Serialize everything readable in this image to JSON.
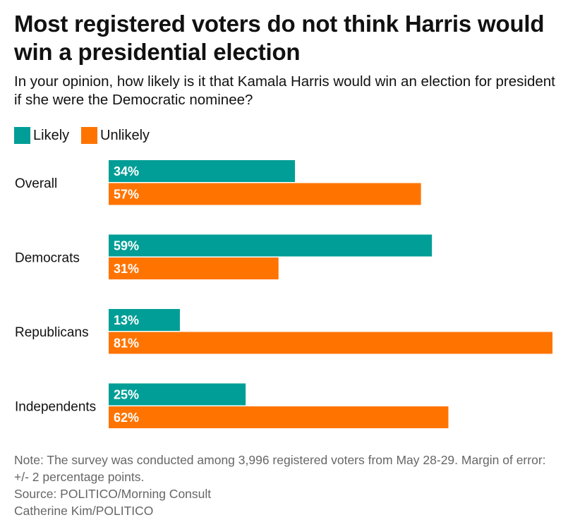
{
  "title": "Most registered voters do not think Harris would win a presidential election",
  "subtitle": "In your opinion, how likely is it that Kamala Harris would win an election for president if she were the Democratic nominee?",
  "legend": [
    {
      "label": "Likely",
      "color": "#009E96"
    },
    {
      "label": "Unlikely",
      "color": "#FF7400"
    }
  ],
  "chart_data": {
    "type": "bar",
    "orientation": "horizontal",
    "title": "Most registered voters do not think Harris would win a presidential election",
    "categories": [
      "Overall",
      "Democrats",
      "Republicans",
      "Independents"
    ],
    "series": [
      {
        "name": "Likely",
        "color": "#009E96",
        "values": [
          34,
          59,
          13,
          25
        ],
        "labels": [
          "34%",
          "59%",
          "13%",
          "25%"
        ]
      },
      {
        "name": "Unlikely",
        "color": "#FF7400",
        "values": [
          57,
          31,
          81,
          62
        ],
        "labels": [
          "57%",
          "31%",
          "81%",
          "62%"
        ]
      }
    ],
    "xlim": [
      0,
      81
    ],
    "xlabel": "",
    "ylabel": "",
    "grid": false,
    "legend_position": "top-left"
  },
  "notes": {
    "note": "Note: The survey was conducted among 3,996 registered voters from May 28-29. Margin of error: +/- 2 percentage points.",
    "source": "Source: POLITICO/Morning Consult",
    "credit": "Catherine Kim/POLITICO"
  }
}
